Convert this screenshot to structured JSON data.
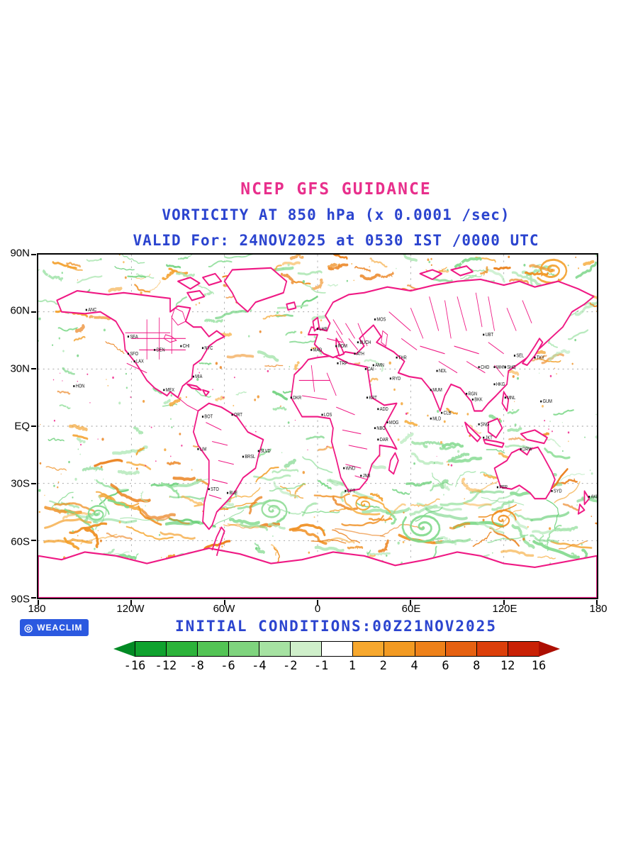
{
  "titles": {
    "line1": "NCEP GFS GUIDANCE",
    "line2": "VORTICITY AT 850 hPa (x 0.0001 /sec)",
    "line3": "VALID For: 24NOV2025 at 0530 IST /0000 UTC"
  },
  "footer": {
    "logo_text": "WEACLIM",
    "initial_conditions": "INITIAL CONDITIONS:00Z21NOV2025"
  },
  "axes": {
    "lat_labels": [
      "90N",
      "60N",
      "30N",
      "EQ",
      "30S",
      "60S",
      "90S"
    ],
    "lon_labels": [
      "180",
      "120W",
      "60W",
      "0",
      "60E",
      "120E",
      "180"
    ]
  },
  "colorbar": {
    "tick_labels": [
      "-16",
      "-12",
      "-8",
      "-6",
      "-4",
      "-2",
      "-1",
      "1",
      "2",
      "4",
      "6",
      "8",
      "12",
      "16"
    ],
    "segment_colors": [
      "#0fa22e",
      "#2cb33a",
      "#53c455",
      "#7fd47e",
      "#a6e2a2",
      "#cfefca",
      "#ffffff",
      "#f7a82e",
      "#f29a22",
      "#ee8119",
      "#e66111",
      "#dc3f0a",
      "#c92105"
    ],
    "arrow_left_color": "#028a24",
    "arrow_right_color": "#ad0f02"
  },
  "colors": {
    "title_pink": "#e82f8c",
    "title_blue": "#2b44cf",
    "coastline_magenta": "#ef1984",
    "negative_green": "#8fdc96",
    "positive_orange": "#f2a239",
    "logo_blue": "#2b59e0"
  },
  "stations": [
    {
      "code": "ANC",
      "lon": -149,
      "lat": 61
    },
    {
      "code": "SEA",
      "lon": -122,
      "lat": 47
    },
    {
      "code": "SFO",
      "lon": -122,
      "lat": 38
    },
    {
      "code": "LAX",
      "lon": -118,
      "lat": 34
    },
    {
      "code": "DEN",
      "lon": -105,
      "lat": 40
    },
    {
      "code": "CHI",
      "lon": -88,
      "lat": 42
    },
    {
      "code": "NYC",
      "lon": -74,
      "lat": 41
    },
    {
      "code": "MIA",
      "lon": -80,
      "lat": 26
    },
    {
      "code": "HON",
      "lon": -157,
      "lat": 21
    },
    {
      "code": "MEX",
      "lon": -99,
      "lat": 19
    },
    {
      "code": "BOT",
      "lon": -74,
      "lat": 5
    },
    {
      "code": "ORT",
      "lon": -55,
      "lat": 6
    },
    {
      "code": "LIM",
      "lon": -77,
      "lat": -12
    },
    {
      "code": "BRSL",
      "lon": -48,
      "lat": -16
    },
    {
      "code": "SLVD",
      "lon": -38,
      "lat": -13
    },
    {
      "code": "STO",
      "lon": -70,
      "lat": -33
    },
    {
      "code": "BUE",
      "lon": -58,
      "lat": -35
    },
    {
      "code": "LHR",
      "lon": 0,
      "lat": 51
    },
    {
      "code": "MAD",
      "lon": -4,
      "lat": 40
    },
    {
      "code": "ROM",
      "lon": 12,
      "lat": 42
    },
    {
      "code": "ATH",
      "lon": 24,
      "lat": 38
    },
    {
      "code": "BUCH",
      "lon": 26,
      "lat": 44
    },
    {
      "code": "MOS",
      "lon": 37,
      "lat": 56
    },
    {
      "code": "CAI",
      "lon": 31,
      "lat": 30
    },
    {
      "code": "TRP",
      "lon": 13,
      "lat": 33
    },
    {
      "code": "DKR",
      "lon": -17,
      "lat": 15
    },
    {
      "code": "LOS",
      "lon": 3,
      "lat": 6
    },
    {
      "code": "KRT",
      "lon": 32,
      "lat": 15
    },
    {
      "code": "ADD",
      "lon": 39,
      "lat": 9
    },
    {
      "code": "NBO",
      "lon": 37,
      "lat": -1
    },
    {
      "code": "MOG",
      "lon": 45,
      "lat": 2
    },
    {
      "code": "DAR",
      "lon": 39,
      "lat": -7
    },
    {
      "code": "WND",
      "lon": 17,
      "lat": -22
    },
    {
      "code": "JNB",
      "lon": 28,
      "lat": -26
    },
    {
      "code": "CPT",
      "lon": 18,
      "lat": -34
    },
    {
      "code": "AMN",
      "lon": 36,
      "lat": 32
    },
    {
      "code": "THR",
      "lon": 51,
      "lat": 36
    },
    {
      "code": "RYD",
      "lon": 47,
      "lat": 25
    },
    {
      "code": "MLD",
      "lon": 73,
      "lat": 4
    },
    {
      "code": "NDL",
      "lon": 77,
      "lat": 29
    },
    {
      "code": "MUM",
      "lon": 73,
      "lat": 19
    },
    {
      "code": "CLB",
      "lon": 80,
      "lat": 7
    },
    {
      "code": "BKK",
      "lon": 100,
      "lat": 14
    },
    {
      "code": "RGN",
      "lon": 96,
      "lat": 17
    },
    {
      "code": "SNG",
      "lon": 104,
      "lat": 1
    },
    {
      "code": "JKT",
      "lon": 107,
      "lat": -6
    },
    {
      "code": "HKG",
      "lon": 114,
      "lat": 22
    },
    {
      "code": "WHN",
      "lon": 114,
      "lat": 31
    },
    {
      "code": "SHG",
      "lon": 121,
      "lat": 31
    },
    {
      "code": "SEL",
      "lon": 127,
      "lat": 37
    },
    {
      "code": "TKY",
      "lon": 140,
      "lat": 36
    },
    {
      "code": "UBT",
      "lon": 107,
      "lat": 48
    },
    {
      "code": "CHD",
      "lon": 104,
      "lat": 31
    },
    {
      "code": "GUM",
      "lon": 144,
      "lat": 13
    },
    {
      "code": "MNL",
      "lon": 121,
      "lat": 15
    },
    {
      "code": "PER",
      "lon": 116,
      "lat": -32
    },
    {
      "code": "DRW",
      "lon": 131,
      "lat": -12
    },
    {
      "code": "SYD",
      "lon": 151,
      "lat": -34
    },
    {
      "code": "AKL",
      "lon": 175,
      "lat": -37
    }
  ],
  "chart_data": {
    "type": "heatmap",
    "title": "NCEP GFS GUIDANCE",
    "subtitle": "VORTICITY AT 850 hPa (x 0.0001 /sec)",
    "valid_line": "VALID For: 24NOV2025 at 0530 IST /0000 UTC",
    "init_line": "INITIAL CONDITIONS:00Z21NOV2025",
    "variable": "850 hPa relative vorticity",
    "units": "x 0.0001 /sec",
    "projection": "equirectangular global map, 90N-90S, 180W-180E, centered on 0 longitude",
    "x_axis": {
      "ticks": [
        "180",
        "120W",
        "60W",
        "0",
        "60E",
        "120E",
        "180"
      ],
      "range_deg": [
        -180,
        180
      ]
    },
    "y_axis": {
      "ticks": [
        "90N",
        "60N",
        "30N",
        "EQ",
        "30S",
        "60S",
        "90S"
      ],
      "range_deg": [
        -90,
        90
      ]
    },
    "contour_levels": [
      -16,
      -12,
      -8,
      -6,
      -4,
      -2,
      -1,
      1,
      2,
      4,
      6,
      8,
      12,
      16
    ],
    "legend_position": "bottom",
    "grid": "dotted graticule every 60 deg lon / 30 deg lat",
    "notes": "Negative vorticity shaded green, positive shaded orange-to-red; coastlines and political borders drawn in magenta; filamentary vorticity bands along the Southern Ocean storm track with several cyclonic spirals, dense features across the Arctic and NH midlatitudes, sparse speckles in the tropics; tiny black station-code labels scattered over land."
  }
}
